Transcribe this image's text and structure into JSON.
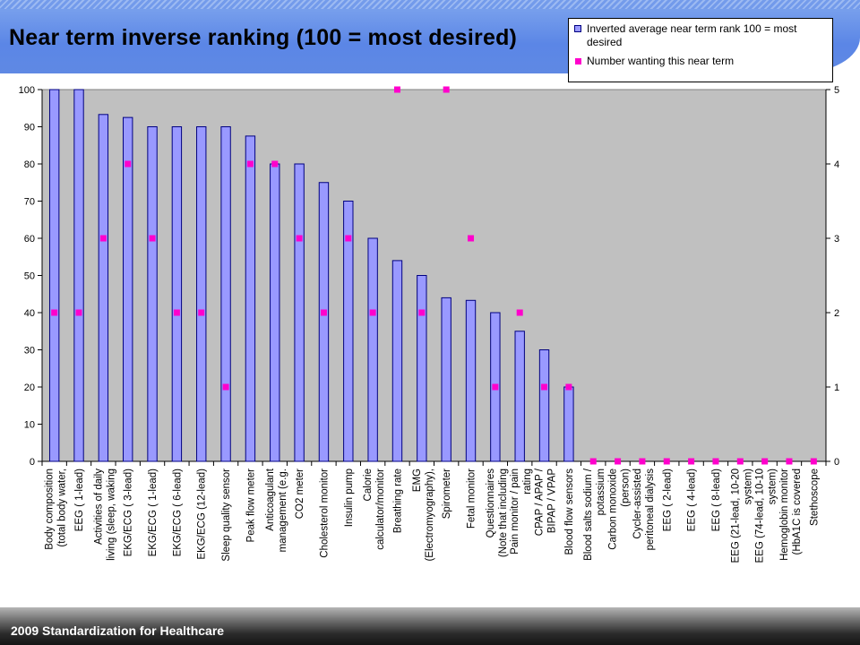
{
  "slide": {
    "footer": "2009 Standardization for Healthcare"
  },
  "chart_data": {
    "type": "bar",
    "title": "Near term inverse ranking (100 = most desired)",
    "categories": [
      [
        "Body composition",
        "(total body water,"
      ],
      [
        "EEG ( 1-lead)"
      ],
      [
        "Activities of daily",
        "living (sleep, waking"
      ],
      [
        "EKG/ECG ( 3-lead)"
      ],
      [
        "EKG/ECG ( 1-lead)"
      ],
      [
        "EKG/ECG ( 6-lead)"
      ],
      [
        "EKG/ECG (12-lead)"
      ],
      [
        "Sleep quality sensor"
      ],
      [
        "Peak flow meter"
      ],
      [
        "Anticoagulant",
        "management (e.g."
      ],
      [
        "CO2 meter"
      ],
      [
        "Cholesterol monitor"
      ],
      [
        "Insulin pump"
      ],
      [
        "Calorie",
        "calculator/monitor"
      ],
      [
        "Breathing rate"
      ],
      [
        "EMG",
        "(Electromyography),"
      ],
      [
        "Spirometer"
      ],
      [
        "Fetal monitor"
      ],
      [
        "Questionnaires",
        "(Note that including"
      ],
      [
        "Pain monitor / pain",
        "rating"
      ],
      [
        "CPAP / APAP /",
        "BIPAP / VPAP"
      ],
      [
        "Blood flow sensors"
      ],
      [
        "Blood salts sodium /",
        "potassium"
      ],
      [
        "Carbon monoxide",
        "(person)"
      ],
      [
        "Cycler-assisted",
        "peritoneal dialysis"
      ],
      [
        "EEG ( 2-lead)"
      ],
      [
        "EEG ( 4-lead)"
      ],
      [
        "EEG ( 8-lead)"
      ],
      [
        "EEG (21-lead, 10-20",
        "system)"
      ],
      [
        "EEG (74-lead, 10-10",
        "system)"
      ],
      [
        "Hemoglobin monitor",
        "(HbA1C is covered"
      ],
      [
        "Stethoscope"
      ]
    ],
    "series": [
      {
        "name": "Inverted average near term rank 100 = most desired",
        "kind": "bar",
        "axis": "left",
        "color": "#9999ff",
        "values": [
          100,
          100,
          93.3,
          92.5,
          90,
          90,
          90,
          90,
          87.5,
          80,
          80,
          75,
          70,
          60,
          54,
          50,
          44,
          43.3,
          40,
          35,
          30,
          20,
          0,
          0,
          0,
          0,
          0,
          0,
          0,
          0,
          0,
          0
        ]
      },
      {
        "name": "Number wanting this near term",
        "kind": "marker",
        "axis": "right",
        "color": "#ff00cc",
        "values": [
          2,
          2,
          3,
          4,
          3,
          2,
          2,
          1,
          4,
          4,
          3,
          2,
          3,
          2,
          5,
          2,
          5,
          3,
          1,
          2,
          1,
          1,
          0,
          0,
          0,
          0,
          0,
          0,
          0,
          0,
          0,
          0
        ]
      }
    ],
    "y_left": {
      "min": 0,
      "max": 100,
      "ticks": [
        "0",
        "10",
        "20",
        "30",
        "40",
        "50",
        "60",
        "70",
        "80",
        "90",
        "100"
      ]
    },
    "y_right": {
      "min": 0,
      "max": 5,
      "ticks": [
        "0",
        "1",
        "2",
        "3",
        "4",
        "5"
      ]
    },
    "plot_background": "#c0c0c0",
    "grid": false,
    "legend_position": "top-right"
  }
}
